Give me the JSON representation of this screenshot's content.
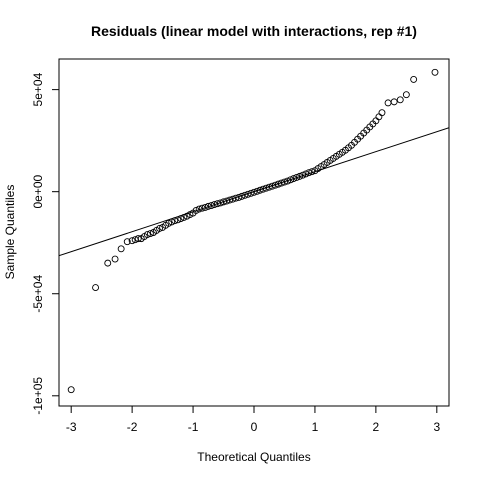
{
  "chart_data": {
    "type": "scatter",
    "title": "Residuals (linear model with interactions, rep #1)",
    "xlabel": "Theoretical Quantiles",
    "ylabel": "Sample Quantiles",
    "xlim": [
      -3.2,
      3.2
    ],
    "ylim": [
      -105000,
      65000
    ],
    "x_ticks": [
      {
        "value": -3,
        "label": "-3"
      },
      {
        "value": -2,
        "label": "-2"
      },
      {
        "value": -1,
        "label": "-1"
      },
      {
        "value": 0,
        "label": "0"
      },
      {
        "value": 1,
        "label": "1"
      },
      {
        "value": 2,
        "label": "2"
      },
      {
        "value": 3,
        "label": "3"
      }
    ],
    "y_ticks": [
      {
        "value": -100000,
        "label": "-1e+05"
      },
      {
        "value": -50000,
        "label": "-5e+04"
      },
      {
        "value": 0,
        "label": "0e+00"
      },
      {
        "value": 50000,
        "label": "5e+04"
      }
    ],
    "reference_line": {
      "intercept": 0,
      "slope": 9800
    },
    "grid": false,
    "points": [
      [
        -3.0,
        -97000
      ],
      [
        -2.6,
        -47000
      ],
      [
        -2.4,
        -35000
      ],
      [
        -2.28,
        -33000
      ],
      [
        -2.18,
        -28000
      ],
      [
        -2.08,
        -24500
      ],
      [
        -2.0,
        -24000
      ],
      [
        -1.95,
        -23500
      ],
      [
        -1.9,
        -23000
      ],
      [
        -1.85,
        -23000
      ],
      [
        -1.8,
        -22000
      ],
      [
        -1.75,
        -21000
      ],
      [
        -1.7,
        -20500
      ],
      [
        -1.65,
        -20000
      ],
      [
        -1.6,
        -19000
      ],
      [
        -1.55,
        -18000
      ],
      [
        -1.5,
        -17500
      ],
      [
        -1.45,
        -16500
      ],
      [
        -1.4,
        -15500
      ],
      [
        -1.35,
        -14800
      ],
      [
        -1.3,
        -14200
      ],
      [
        -1.25,
        -13800
      ],
      [
        -1.2,
        -13200
      ],
      [
        -1.15,
        -12600
      ],
      [
        -1.1,
        -12000
      ],
      [
        -1.05,
        -11200
      ],
      [
        -1.0,
        -10500
      ],
      [
        -0.95,
        -9200
      ],
      [
        -0.9,
        -8500
      ],
      [
        -0.85,
        -8100
      ],
      [
        -0.8,
        -7700
      ],
      [
        -0.75,
        -7200
      ],
      [
        -0.7,
        -6800
      ],
      [
        -0.65,
        -6300
      ],
      [
        -0.6,
        -5900
      ],
      [
        -0.55,
        -5500
      ],
      [
        -0.5,
        -5000
      ],
      [
        -0.45,
        -4600
      ],
      [
        -0.4,
        -4100
      ],
      [
        -0.35,
        -3700
      ],
      [
        -0.3,
        -3200
      ],
      [
        -0.25,
        -2800
      ],
      [
        -0.2,
        -2300
      ],
      [
        -0.15,
        -1800
      ],
      [
        -0.1,
        -1300
      ],
      [
        -0.05,
        -800
      ],
      [
        0.0,
        -300
      ],
      [
        0.05,
        200
      ],
      [
        0.1,
        700
      ],
      [
        0.15,
        1200
      ],
      [
        0.2,
        1700
      ],
      [
        0.25,
        2200
      ],
      [
        0.3,
        2700
      ],
      [
        0.35,
        3200
      ],
      [
        0.4,
        3700
      ],
      [
        0.45,
        4200
      ],
      [
        0.5,
        4700
      ],
      [
        0.55,
        5200
      ],
      [
        0.6,
        5800
      ],
      [
        0.65,
        6400
      ],
      [
        0.7,
        7000
      ],
      [
        0.75,
        7500
      ],
      [
        0.8,
        8100
      ],
      [
        0.85,
        8700
      ],
      [
        0.9,
        9300
      ],
      [
        0.95,
        9800
      ],
      [
        1.0,
        10300
      ],
      [
        1.05,
        11300
      ],
      [
        1.1,
        12300
      ],
      [
        1.15,
        13300
      ],
      [
        1.2,
        14300
      ],
      [
        1.25,
        15300
      ],
      [
        1.3,
        16300
      ],
      [
        1.35,
        17300
      ],
      [
        1.4,
        18300
      ],
      [
        1.45,
        19300
      ],
      [
        1.5,
        20300
      ],
      [
        1.55,
        21500
      ],
      [
        1.6,
        22700
      ],
      [
        1.65,
        24200
      ],
      [
        1.7,
        25700
      ],
      [
        1.75,
        27200
      ],
      [
        1.8,
        28700
      ],
      [
        1.85,
        30200
      ],
      [
        1.9,
        31700
      ],
      [
        1.95,
        33200
      ],
      [
        2.0,
        34700
      ],
      [
        2.05,
        36700
      ],
      [
        2.1,
        38700
      ],
      [
        2.2,
        43500
      ],
      [
        2.3,
        44000
      ],
      [
        2.4,
        45000
      ],
      [
        2.5,
        47500
      ],
      [
        2.62,
        55000
      ],
      [
        2.97,
        58500
      ]
    ]
  }
}
